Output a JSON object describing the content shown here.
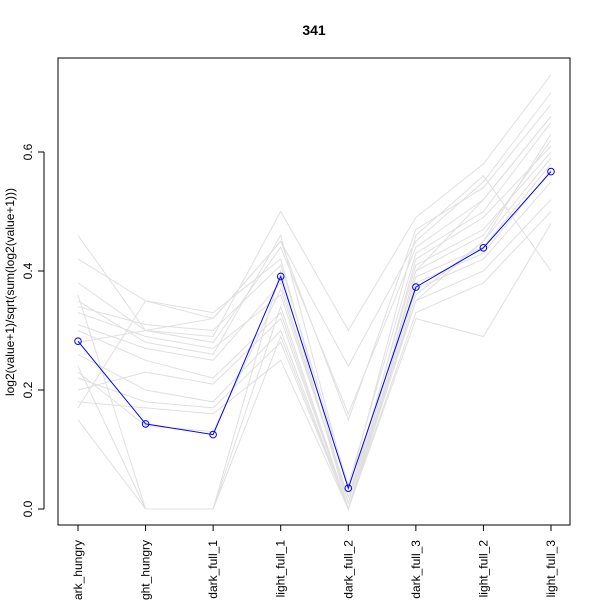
{
  "chart_data": {
    "type": "line",
    "title": "341",
    "xlabel": "",
    "ylabel": "log2(value+1)/sqrt(sum(log2(value+1)))",
    "categories": [
      "dark_hungry",
      "light_hungry",
      "dark_full_1",
      "light_full_1",
      "dark_full_2",
      "dark_full_3",
      "light_full_2",
      "light_full_3"
    ],
    "category_labels_visible": [
      "ark_hungry",
      "ght_hungry",
      "dark_full_1",
      "light_full_1",
      "dark_full_2",
      "dark_full_3",
      "light_full_2",
      "light_full_3"
    ],
    "yticks": [
      0.0,
      0.2,
      0.4,
      0.6
    ],
    "ytick_labels": [
      "0.0",
      "0.2",
      "0.4",
      "0.6"
    ],
    "ylim": [
      -0.02,
      0.75
    ],
    "grid": false,
    "highlight_series": {
      "values": [
        0.282,
        0.143,
        0.125,
        0.391,
        0.035,
        0.373,
        0.439,
        0.567
      ],
      "color": "#0000ff"
    },
    "background_series_color": "#e0e0e0",
    "background_series": [
      [
        0.46,
        0.3,
        0.29,
        0.5,
        0.3,
        0.49,
        0.58,
        0.73
      ],
      [
        0.42,
        0.35,
        0.32,
        0.45,
        0.24,
        0.45,
        0.55,
        0.7
      ],
      [
        0.38,
        0.3,
        0.28,
        0.44,
        0.16,
        0.44,
        0.52,
        0.66
      ],
      [
        0.36,
        0.0,
        0.0,
        0.4,
        0.0,
        0.4,
        0.46,
        0.62
      ],
      [
        0.34,
        0.31,
        0.3,
        0.41,
        0.04,
        0.43,
        0.5,
        0.65
      ],
      [
        0.33,
        0.29,
        0.27,
        0.36,
        0.02,
        0.41,
        0.47,
        0.6
      ],
      [
        0.31,
        0.27,
        0.25,
        0.38,
        0.01,
        0.39,
        0.44,
        0.58
      ],
      [
        0.3,
        0.25,
        0.22,
        0.33,
        0.0,
        0.37,
        0.42,
        0.55
      ],
      [
        0.28,
        0.3,
        0.32,
        0.45,
        0.15,
        0.47,
        0.54,
        0.68
      ],
      [
        0.26,
        0.2,
        0.18,
        0.3,
        0.0,
        0.35,
        0.4,
        0.52
      ],
      [
        0.24,
        0.0,
        0.0,
        0.34,
        0.0,
        0.36,
        0.45,
        0.63
      ],
      [
        0.22,
        0.18,
        0.17,
        0.28,
        0.0,
        0.33,
        0.38,
        0.5
      ],
      [
        0.2,
        0.23,
        0.21,
        0.32,
        0.0,
        0.4,
        0.52,
        0.66
      ],
      [
        0.18,
        0.17,
        0.16,
        0.25,
        0.0,
        0.32,
        0.29,
        0.48
      ],
      [
        0.17,
        0.35,
        0.33,
        0.42,
        0.01,
        0.42,
        0.49,
        0.61
      ],
      [
        0.15,
        0.0,
        0.0,
        0.29,
        0.0,
        0.38,
        0.43,
        0.57
      ],
      [
        0.23,
        0.14,
        0.13,
        0.37,
        0.02,
        0.35,
        0.45,
        0.59
      ],
      [
        0.35,
        0.28,
        0.26,
        0.46,
        0.03,
        0.46,
        0.56,
        0.4
      ]
    ]
  }
}
